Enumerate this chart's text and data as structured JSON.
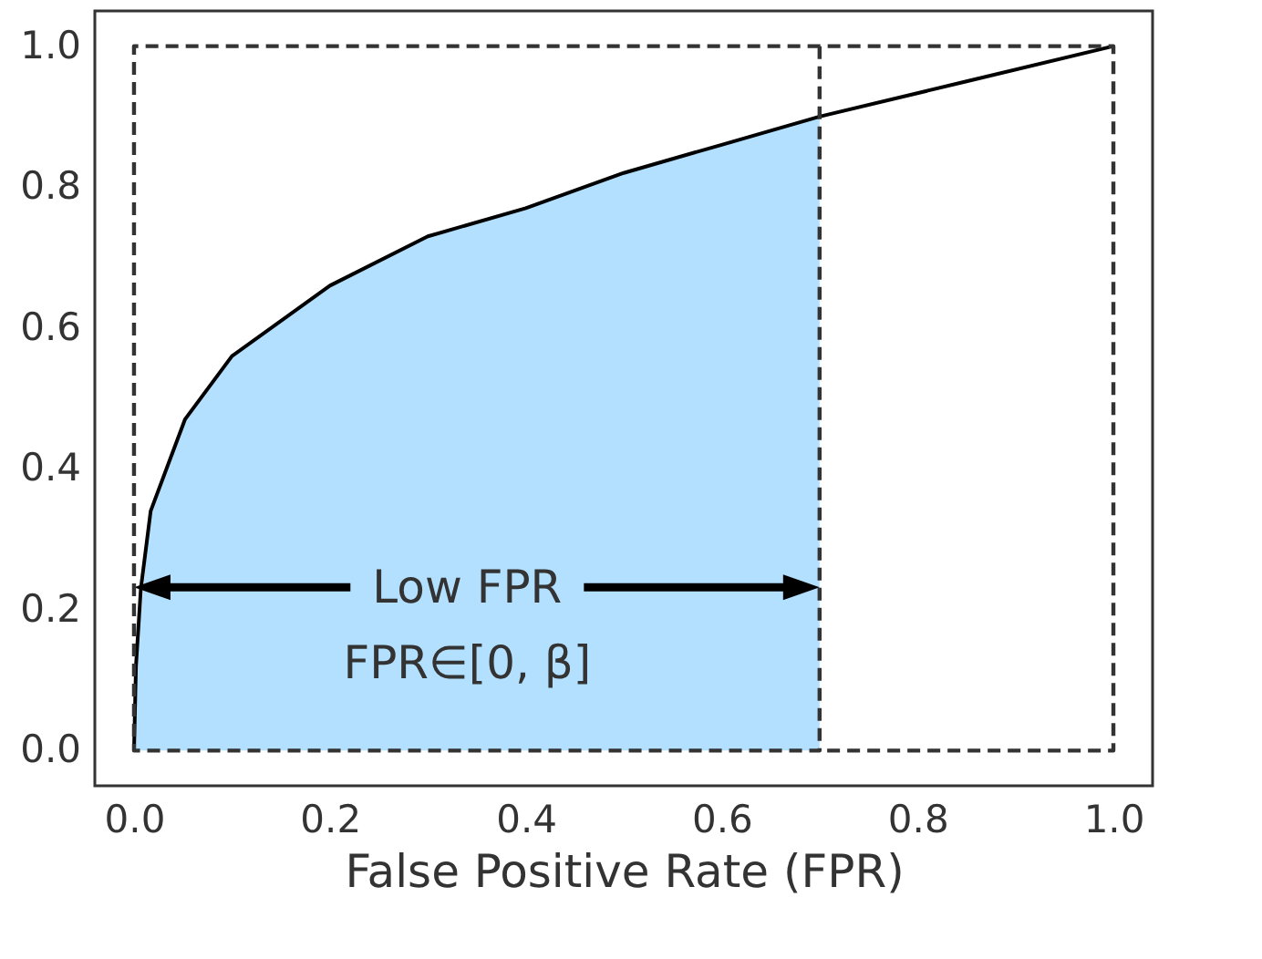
{
  "chart_data": {
    "type": "line",
    "xlabel": "False Positive Rate (FPR)",
    "xlim": [
      -0.04,
      1.04
    ],
    "ylim": [
      -0.05,
      1.05
    ],
    "xticks": [
      {
        "value": 0,
        "label": "0.0"
      },
      {
        "value": 0.2,
        "label": "0.2"
      },
      {
        "value": 0.4,
        "label": "0.4"
      },
      {
        "value": 0.6,
        "label": "0.6"
      },
      {
        "value": 0.8,
        "label": "0.8"
      },
      {
        "value": 1,
        "label": "1.0"
      }
    ],
    "yticks": [
      {
        "value": 0,
        "label": "0.0"
      },
      {
        "value": 0.2,
        "label": "0.2"
      },
      {
        "value": 0.4,
        "label": "0.4"
      },
      {
        "value": 0.6,
        "label": "0.6"
      },
      {
        "value": 0.8,
        "label": "0.8"
      },
      {
        "value": 1,
        "label": "1.0"
      }
    ],
    "series": [
      {
        "type": "area",
        "color": "#b3e0ff",
        "x": [
          0,
          0.002,
          0.017,
          0.052,
          0.1,
          0.2,
          0.3,
          0.4,
          0.5,
          0.6,
          0.7
        ],
        "values": [
          0,
          0.12,
          0.34,
          0.47,
          0.56,
          0.66,
          0.73,
          0.77,
          0.82,
          0.86,
          0.9
        ]
      },
      {
        "type": "line",
        "color": "#000000",
        "line_style": "solid",
        "x": [
          0,
          0.002,
          0.007,
          0.017,
          0.052,
          0.1,
          0.2,
          0.3,
          0.4,
          0.5,
          0.6,
          0.7,
          0.85,
          1
        ],
        "values": [
          0,
          0.12,
          0.23,
          0.34,
          0.47,
          0.56,
          0.66,
          0.73,
          0.77,
          0.82,
          0.86,
          0.9,
          0.95,
          1
        ]
      },
      {
        "type": "line",
        "color": "#333333",
        "line_style": "dashed",
        "x": [
          0.7,
          0.7,
          0,
          0,
          1,
          1,
          0.7
        ],
        "values": [
          1,
          0,
          0,
          1,
          1,
          0,
          0
        ]
      }
    ],
    "annotations": [
      "Low FPR",
      "FPR∈[0, β]"
    ]
  }
}
